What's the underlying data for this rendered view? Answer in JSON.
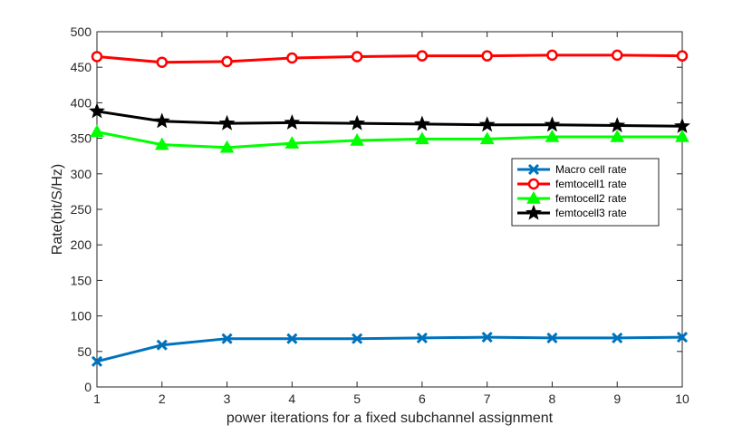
{
  "chart_data": {
    "type": "line",
    "title": "",
    "xlabel": "power iterations for a fixed subchannel assignment",
    "ylabel": "Rate(bit/S/Hz)",
    "xlim": [
      1,
      10
    ],
    "ylim": [
      0,
      500
    ],
    "x": [
      1,
      2,
      3,
      4,
      5,
      6,
      7,
      8,
      9,
      10
    ],
    "xticks": [
      "1",
      "2",
      "3",
      "4",
      "5",
      "6",
      "7",
      "8",
      "9",
      "10"
    ],
    "yticks": [
      "0",
      "50",
      "100",
      "150",
      "200",
      "250",
      "300",
      "350",
      "400",
      "450",
      "500"
    ],
    "grid": false,
    "legend_position": "right",
    "series": [
      {
        "name": "Macro cell rate",
        "color": "#0072BD",
        "marker": "x",
        "values": [
          36,
          59,
          68,
          68,
          68,
          69,
          70,
          69,
          69,
          70
        ]
      },
      {
        "name": "femtocell1 rate",
        "color": "#FF0000",
        "marker": "circle",
        "values": [
          465,
          457,
          458,
          463,
          465,
          466,
          466,
          467,
          467,
          466
        ]
      },
      {
        "name": "femtocell2 rate",
        "color": "#00FF00",
        "marker": "triangle",
        "values": [
          359,
          341,
          337,
          343,
          347,
          349,
          349,
          352,
          352,
          352
        ]
      },
      {
        "name": "femtocell3 rate",
        "color": "#000000",
        "marker": "star",
        "values": [
          388,
          374,
          371,
          372,
          371,
          370,
          369,
          369,
          368,
          367
        ]
      }
    ]
  }
}
